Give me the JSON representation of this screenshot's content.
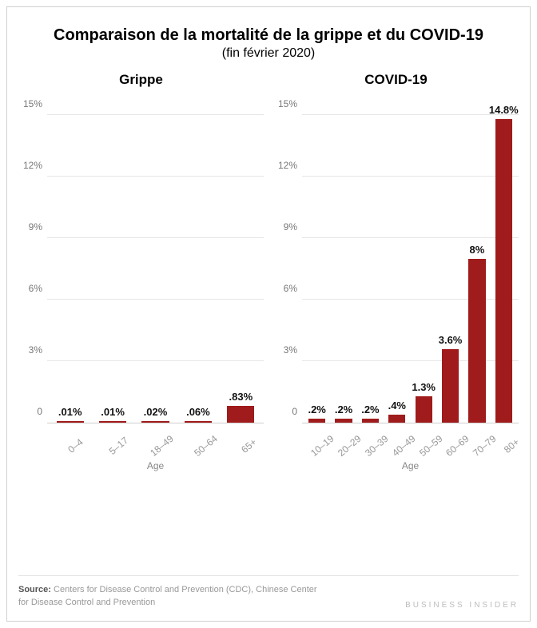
{
  "title": "Comparaison de la mortalité de la grippe et du COVID-19",
  "title_fontsize": 20,
  "subtitle": "(fin février 2020)",
  "subtitle_fontsize": 16,
  "panel_title_fontsize": 17,
  "background_color": "#ffffff",
  "grid_color": "#e6e6e6",
  "axis_line_color": "#cfcfcf",
  "bar_color": "#a01b1b",
  "value_label_color": "#111111",
  "tick_label_color": "#999999",
  "ytick_label_color": "#777777",
  "ylim": [
    0,
    16
  ],
  "yticks": [
    0,
    3,
    6,
    9,
    12,
    15
  ],
  "ytick_labels": [
    "0",
    "3%",
    "6%",
    "9%",
    "12%",
    "15%"
  ],
  "axis_label": "Age",
  "panels": [
    {
      "title": "Grippe",
      "type": "bar",
      "categories": [
        "0–4",
        "5–17",
        "18–49",
        "50–64",
        "65+"
      ],
      "values": [
        0.01,
        0.01,
        0.02,
        0.06,
        0.83
      ],
      "value_labels": [
        ".01%",
        ".01%",
        ".02%",
        ".06%",
        ".83%"
      ]
    },
    {
      "title": "COVID-19",
      "type": "bar",
      "categories": [
        "10–19",
        "20–29",
        "30–39",
        "40–49",
        "50–59",
        "60–69",
        "70–79",
        "80+"
      ],
      "values": [
        0.2,
        0.2,
        0.2,
        0.4,
        1.3,
        3.6,
        8,
        14.8
      ],
      "value_labels": [
        ".2%",
        ".2%",
        ".2%",
        ".4%",
        "1.3%",
        "3.6%",
        "8%",
        "14.8%"
      ]
    }
  ],
  "source_lead": "Source:",
  "source_text": "Centers for Disease Control and Prevention (CDC), Chinese Center for Disease Control and Prevention",
  "brand": "BUSINESS INSIDER"
}
